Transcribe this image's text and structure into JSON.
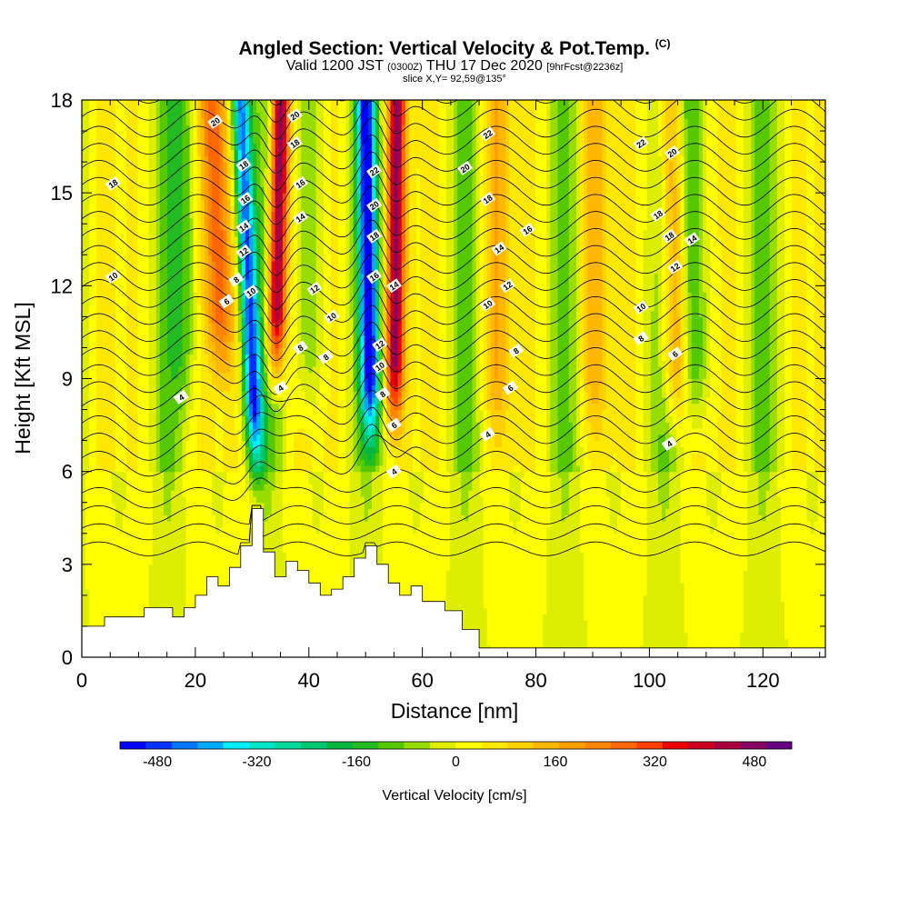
{
  "title": {
    "main": "Angled Section: Vertical Velocity & Pot.Temp.",
    "copyright": "(C)",
    "valid_prefix": "Valid 1200 JST",
    "valid_utc": "(0300Z)",
    "valid_date": "THU 17 Dec 2020",
    "forecast": "[9hrFcst@2236z]",
    "slice": "slice X,Y= 92,59@135°"
  },
  "chart_data": {
    "type": "heatmap",
    "xlabel": "Distance [nm]",
    "ylabel": "Height [Kft MSL]",
    "xlim": [
      0,
      131
    ],
    "ylim": [
      0,
      18
    ],
    "x_ticks": [
      0,
      20,
      40,
      60,
      80,
      100,
      120
    ],
    "y_ticks": [
      0,
      3,
      6,
      9,
      12,
      15,
      18
    ],
    "colorbar": {
      "label": "Vertical Velocity [cm/s]",
      "ticks": [
        -480,
        -320,
        -160,
        0,
        160,
        320,
        480
      ],
      "range": [
        -540,
        540
      ],
      "colors": [
        "#0000ff",
        "#0033ff",
        "#0077ff",
        "#00aaff",
        "#00eeff",
        "#00e5c8",
        "#00d89c",
        "#00c870",
        "#00b840",
        "#22bb22",
        "#55c800",
        "#99dd00",
        "#ddee00",
        "#ffff00",
        "#ffe800",
        "#ffd000",
        "#ffb800",
        "#ff9f00",
        "#ff8500",
        "#ff6800",
        "#ff4000",
        "#ee0000",
        "#cc0020",
        "#aa0040",
        "#880060",
        "#660080"
      ]
    },
    "terrain": {
      "x": [
        0,
        4,
        4,
        11,
        11,
        16,
        16,
        18,
        18,
        20,
        20,
        22,
        22,
        24,
        24,
        26,
        26,
        28,
        28,
        30,
        30,
        32,
        32,
        34,
        34,
        36,
        36,
        38,
        38,
        40,
        40,
        42,
        42,
        44,
        44,
        46,
        46,
        48,
        48,
        50,
        50,
        52,
        52,
        54,
        54,
        56,
        56,
        58,
        58,
        60,
        60,
        64,
        64,
        67,
        67,
        70,
        70,
        131
      ],
      "height": [
        1.0,
        1.0,
        1.3,
        1.3,
        1.6,
        1.6,
        1.3,
        1.3,
        1.6,
        1.6,
        2.0,
        2.0,
        2.6,
        2.6,
        2.3,
        2.3,
        2.9,
        2.9,
        3.6,
        3.6,
        4.8,
        4.8,
        3.4,
        3.4,
        2.6,
        2.6,
        3.1,
        3.1,
        2.8,
        2.8,
        2.4,
        2.4,
        2.0,
        2.0,
        2.2,
        2.2,
        2.6,
        2.6,
        3.2,
        3.2,
        3.6,
        3.6,
        3.0,
        3.0,
        2.4,
        2.4,
        2.0,
        2.0,
        2.3,
        2.3,
        1.8,
        1.8,
        1.5,
        1.5,
        0.9,
        0.9,
        0.3,
        0.3
      ]
    },
    "updraft_cores": [
      {
        "x_base": 34,
        "x_top": 35,
        "z_base": 8,
        "peak": 520
      },
      {
        "x_base": 55,
        "x_top": 55.5,
        "z_base": 6.5,
        "peak": 420
      },
      {
        "x_base": 25,
        "x_top": 23,
        "z_base": 8,
        "peak": 230
      },
      {
        "x_base": 105,
        "x_top": 104,
        "z_base": 6.5,
        "peak": 240
      },
      {
        "x_base": 73,
        "x_top": 73,
        "z_base": 6,
        "peak": 120
      },
      {
        "x_base": 90,
        "x_top": 90,
        "z_base": 6,
        "peak": 110
      }
    ],
    "downdraft_cores": [
      {
        "x_base": 31,
        "x_top": 28,
        "z_base": 5,
        "peak": -470
      },
      {
        "x_base": 51,
        "x_top": 50,
        "z_base": 6,
        "peak": -480
      },
      {
        "x_base": 108,
        "x_top": 107,
        "z_base": 6.5,
        "peak": -200
      },
      {
        "x_base": 40,
        "x_top": 40,
        "z_base": 7,
        "peak": -120
      },
      {
        "x_base": 18,
        "x_top": 18,
        "z_base": 7,
        "peak": -100
      }
    ],
    "contour_labels": [
      {
        "text": "20",
        "x": 23.5,
        "z": 17.3
      },
      {
        "text": "18",
        "x": 28.5,
        "z": 15.9
      },
      {
        "text": "16",
        "x": 28.8,
        "z": 14.8
      },
      {
        "text": "14",
        "x": 28.5,
        "z": 13.9
      },
      {
        "text": "12",
        "x": 28.5,
        "z": 13.1
      },
      {
        "text": "8",
        "x": 27.2,
        "z": 12.2
      },
      {
        "text": "10",
        "x": 29.8,
        "z": 11.8
      },
      {
        "text": "6",
        "x": 25.5,
        "z": 11.5
      },
      {
        "text": "4",
        "x": 17.5,
        "z": 8.4
      },
      {
        "text": "18",
        "x": 5.5,
        "z": 15.3
      },
      {
        "text": "10",
        "x": 5.5,
        "z": 12.3
      },
      {
        "text": "20",
        "x": 37.5,
        "z": 17.5
      },
      {
        "text": "18",
        "x": 37.5,
        "z": 16.6
      },
      {
        "text": "16",
        "x": 38.5,
        "z": 15.3
      },
      {
        "text": "14",
        "x": 38.5,
        "z": 14.2
      },
      {
        "text": "12",
        "x": 41.0,
        "z": 11.9
      },
      {
        "text": "10",
        "x": 44.0,
        "z": 11.0
      },
      {
        "text": "8",
        "x": 38.5,
        "z": 10.0
      },
      {
        "text": "8",
        "x": 43.0,
        "z": 9.7
      },
      {
        "text": "4",
        "x": 35.0,
        "z": 8.7
      },
      {
        "text": "22",
        "x": 51.5,
        "z": 15.7
      },
      {
        "text": "20",
        "x": 51.5,
        "z": 14.6
      },
      {
        "text": "18",
        "x": 51.5,
        "z": 13.6
      },
      {
        "text": "16",
        "x": 51.5,
        "z": 12.3
      },
      {
        "text": "14",
        "x": 55.0,
        "z": 12.0
      },
      {
        "text": "12",
        "x": 52.5,
        "z": 10.1
      },
      {
        "text": "10",
        "x": 52.5,
        "z": 9.4
      },
      {
        "text": "8",
        "x": 53.0,
        "z": 8.5
      },
      {
        "text": "6",
        "x": 55.0,
        "z": 7.5
      },
      {
        "text": "4",
        "x": 55.0,
        "z": 6.0
      },
      {
        "text": "22",
        "x": 71.5,
        "z": 16.9
      },
      {
        "text": "20",
        "x": 67.5,
        "z": 15.8
      },
      {
        "text": "18",
        "x": 71.5,
        "z": 14.8
      },
      {
        "text": "16",
        "x": 78.5,
        "z": 13.8
      },
      {
        "text": "14",
        "x": 73.5,
        "z": 13.2
      },
      {
        "text": "12",
        "x": 75.0,
        "z": 12.0
      },
      {
        "text": "10",
        "x": 71.5,
        "z": 11.4
      },
      {
        "text": "8",
        "x": 76.5,
        "z": 9.9
      },
      {
        "text": "6",
        "x": 75.5,
        "z": 8.7
      },
      {
        "text": "4",
        "x": 71.5,
        "z": 7.2
      },
      {
        "text": "22",
        "x": 98.5,
        "z": 16.6
      },
      {
        "text": "20",
        "x": 104.0,
        "z": 16.3
      },
      {
        "text": "18",
        "x": 101.5,
        "z": 14.3
      },
      {
        "text": "18",
        "x": 103.5,
        "z": 13.6
      },
      {
        "text": "14",
        "x": 107.5,
        "z": 13.5
      },
      {
        "text": "12",
        "x": 104.5,
        "z": 12.6
      },
      {
        "text": "10",
        "x": 98.5,
        "z": 11.3
      },
      {
        "text": "8",
        "x": 98.5,
        "z": 10.3
      },
      {
        "text": "6",
        "x": 104.5,
        "z": 9.8
      },
      {
        "text": "4",
        "x": 103.5,
        "z": 6.9
      }
    ]
  }
}
